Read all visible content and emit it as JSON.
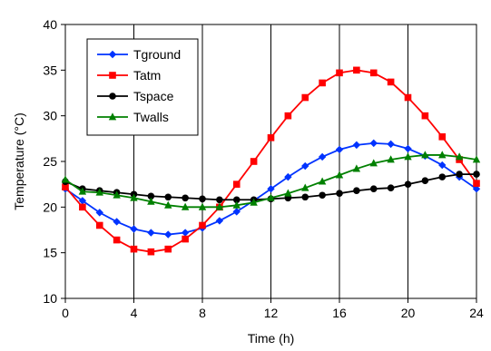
{
  "chart_data": {
    "type": "line",
    "title": "",
    "xlabel": "Time (h)",
    "ylabel": "Temperature (°C)",
    "xlim": [
      0,
      24
    ],
    "ylim": [
      10,
      40
    ],
    "x_ticks": [
      0,
      4,
      8,
      12,
      16,
      20,
      24
    ],
    "y_ticks": [
      10,
      15,
      20,
      25,
      30,
      35,
      40
    ],
    "grid": "vertical",
    "legend_position": "top-left",
    "x": [
      0,
      1,
      2,
      3,
      4,
      5,
      6,
      7,
      8,
      9,
      10,
      11,
      12,
      13,
      14,
      15,
      16,
      17,
      18,
      19,
      20,
      21,
      22,
      23,
      24
    ],
    "series": [
      {
        "name": "Tground",
        "color": "#0033ff",
        "marker": "diamond",
        "values": [
          22.0,
          20.7,
          19.4,
          18.4,
          17.6,
          17.2,
          17.0,
          17.2,
          17.7,
          18.5,
          19.5,
          20.7,
          22.0,
          23.3,
          24.5,
          25.5,
          26.3,
          26.8,
          27.0,
          26.9,
          26.4,
          25.6,
          24.6,
          23.3,
          22.0
        ]
      },
      {
        "name": "Tatm",
        "color": "#ff0000",
        "marker": "square",
        "values": [
          22.2,
          20.0,
          18.0,
          16.4,
          15.4,
          15.1,
          15.4,
          16.5,
          18.0,
          20.0,
          22.5,
          25.0,
          27.6,
          30.0,
          32.0,
          33.6,
          34.7,
          35.0,
          34.7,
          33.7,
          32.0,
          30.0,
          27.7,
          25.2,
          22.6
        ]
      },
      {
        "name": "Tspace",
        "color": "#000000",
        "marker": "circle",
        "values": [
          22.8,
          22.0,
          21.8,
          21.6,
          21.4,
          21.2,
          21.1,
          21.0,
          20.9,
          20.8,
          20.8,
          20.8,
          20.9,
          21.0,
          21.1,
          21.3,
          21.5,
          21.8,
          22.0,
          22.1,
          22.5,
          22.9,
          23.3,
          23.6,
          23.6
        ]
      },
      {
        "name": "Twalls",
        "color": "#008000",
        "marker": "triangle",
        "values": [
          23.0,
          21.7,
          21.6,
          21.3,
          21.0,
          20.6,
          20.2,
          20.0,
          20.0,
          20.0,
          20.2,
          20.5,
          21.0,
          21.5,
          22.1,
          22.8,
          23.5,
          24.2,
          24.8,
          25.2,
          25.5,
          25.7,
          25.7,
          25.5,
          25.2
        ]
      }
    ]
  }
}
